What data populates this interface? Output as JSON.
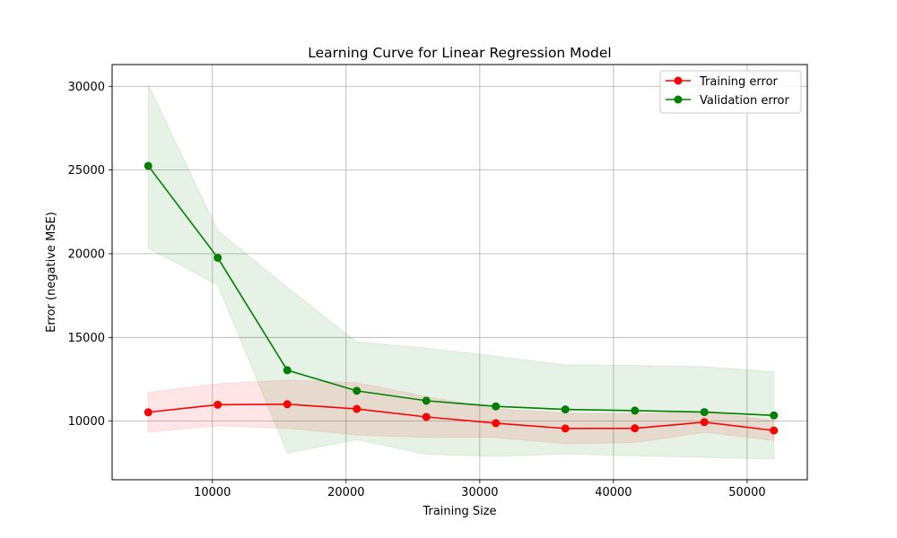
{
  "chart_data": {
    "type": "line",
    "title": "Learning Curve for Linear Regression Model",
    "xlabel": "Training Size",
    "ylabel": "Error (negative MSE)",
    "xlim": [
      2500,
      54500
    ],
    "ylim": [
      6500,
      31300
    ],
    "xticks": [
      10000,
      20000,
      30000,
      40000,
      50000
    ],
    "yticks": [
      10000,
      15000,
      20000,
      25000,
      30000
    ],
    "grid": true,
    "legend_position": "top-right",
    "x": [
      5200,
      10400,
      15600,
      20800,
      26000,
      31200,
      36400,
      41600,
      46800,
      52000
    ],
    "series": [
      {
        "name": "Training error",
        "color": "#ff0000",
        "band_color": "#ff0000",
        "values": [
          10530,
          10980,
          11010,
          10730,
          10250,
          9880,
          9560,
          9570,
          9940,
          9440
        ],
        "lower": [
          9350,
          9730,
          9570,
          9170,
          9030,
          9020,
          8650,
          8720,
          9330,
          8850
        ],
        "upper": [
          11710,
          12230,
          12450,
          12290,
          11470,
          10740,
          10470,
          10420,
          10550,
          10030
        ]
      },
      {
        "name": "Validation error",
        "color": "#008000",
        "band_color": "#008000",
        "values": [
          25250,
          19760,
          13040,
          11810,
          11220,
          10880,
          10700,
          10630,
          10540,
          10340
        ],
        "lower": [
          20330,
          18130,
          8090,
          8890,
          8020,
          7890,
          8040,
          7930,
          7830,
          7730
        ],
        "upper": [
          30100,
          21390,
          17990,
          14730,
          14360,
          13870,
          13360,
          13330,
          13250,
          12950
        ]
      }
    ]
  }
}
